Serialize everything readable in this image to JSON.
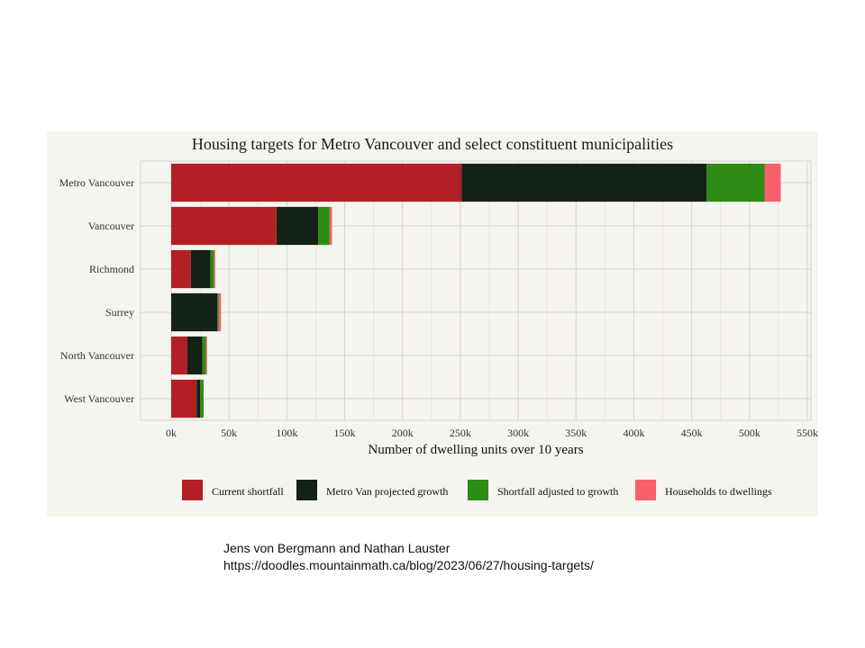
{
  "chart_data": {
    "type": "bar",
    "orientation": "horizontal",
    "stacked": true,
    "title": "Housing targets for Metro Vancouver and select constituent municipalities",
    "xlabel": "Number of dwelling units over 10 years",
    "ylabel": "",
    "xlim": [
      0,
      550000
    ],
    "x_ticks": [
      0,
      50000,
      100000,
      150000,
      200000,
      250000,
      300000,
      350000,
      400000,
      450000,
      500000,
      550000
    ],
    "x_tick_labels": [
      "0k",
      "50k",
      "100k",
      "150k",
      "200k",
      "250k",
      "300k",
      "350k",
      "400k",
      "450k",
      "500k",
      "550k"
    ],
    "categories": [
      "Metro Vancouver",
      "Vancouver",
      "Richmond",
      "Surrey",
      "North Vancouver",
      "West Vancouver"
    ],
    "series": [
      {
        "name": "Current shortfall",
        "color": "#b22025",
        "values": [
          251000,
          91000,
          17000,
          0,
          14000,
          22000
        ]
      },
      {
        "name": "Metro Van projected growth",
        "color": "#142116",
        "values": [
          212000,
          36000,
          17000,
          40000,
          13000,
          3000
        ]
      },
      {
        "name": "Shortfall adjusted to growth",
        "color": "#2e8b16",
        "values": [
          50000,
          10000,
          3000,
          1000,
          3000,
          3000
        ]
      },
      {
        "name": "Households to dwellings",
        "color": "#f8606b",
        "values": [
          14000,
          2000,
          1000,
          2000,
          1000,
          0
        ]
      }
    ],
    "legend_position": "bottom",
    "grid": true
  },
  "colors": {
    "panel_bg": "#f6f4ef",
    "grid_major": "#d6d3ce",
    "grid_minor": "#e8e5e0"
  },
  "credit": {
    "line1": "Jens von Bergmann and Nathan Lauster",
    "line2": "https://doodles.mountainmath.ca/blog/2023/06/27/housing-targets/"
  }
}
